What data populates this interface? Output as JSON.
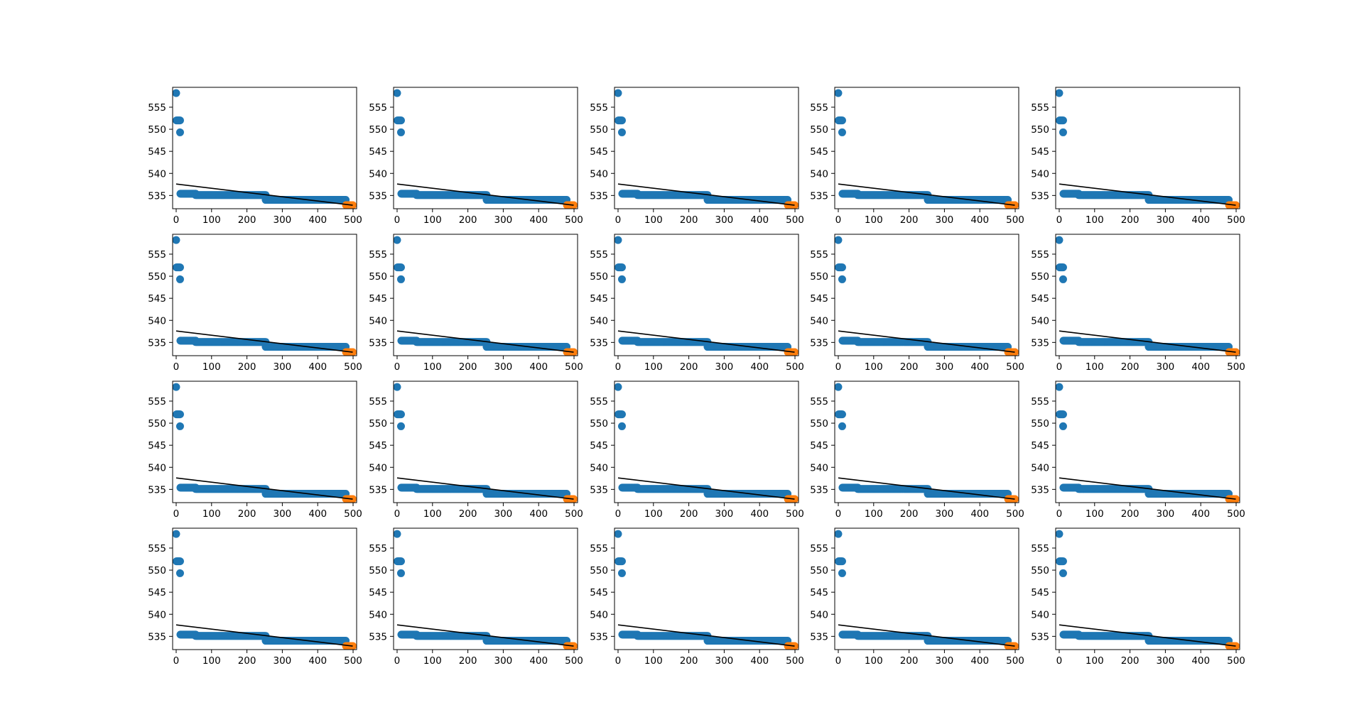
{
  "chart_data": {
    "type": "scatter",
    "grid": {
      "rows": 4,
      "cols": 5,
      "panel_count": 20
    },
    "panels_identical": true,
    "grid_lines": false,
    "legend": "none",
    "title": "",
    "xlabel": "",
    "ylabel": "",
    "xlim": [
      -10,
      510
    ],
    "ylim": [
      532,
      559.5
    ],
    "x_ticks": [
      0,
      100,
      200,
      300,
      400,
      500
    ],
    "x_tick_labels": [
      "0",
      "100",
      "200",
      "300",
      "400",
      "500"
    ],
    "y_ticks": [
      535,
      540,
      545,
      550,
      555
    ],
    "y_tick_labels": [
      "535",
      "540",
      "545",
      "550",
      "555"
    ],
    "colors": {
      "observed": "#1f77b4",
      "forecast": "#ff7f0e",
      "trend": "#000000"
    },
    "series": [
      {
        "kind": "scatter",
        "color_key": "observed",
        "points": [
          [
            0,
            558.2
          ],
          [
            1,
            552.0
          ],
          [
            3,
            552.0
          ],
          [
            5,
            552.0
          ],
          [
            7,
            552.0
          ],
          [
            9,
            552.0
          ],
          [
            11,
            552.0
          ],
          [
            11,
            549.3
          ],
          [
            12,
            535.4
          ],
          [
            14,
            535.4
          ],
          [
            16,
            535.4
          ],
          [
            18,
            535.4
          ],
          [
            20,
            535.4
          ],
          [
            22,
            535.4
          ],
          [
            24,
            535.4
          ],
          [
            26,
            535.4
          ],
          [
            28,
            535.4
          ],
          [
            30,
            535.4
          ],
          [
            32,
            535.4
          ],
          [
            34,
            535.4
          ],
          [
            36,
            535.4
          ],
          [
            38,
            535.4
          ],
          [
            40,
            535.4
          ],
          [
            42,
            535.4
          ],
          [
            44,
            535.4
          ],
          [
            46,
            535.4
          ],
          [
            48,
            535.4
          ],
          [
            50,
            535.4
          ],
          [
            52,
            535.4
          ],
          [
            54,
            535.4
          ],
          [
            55,
            535.4
          ]
        ],
        "segments": [
          {
            "x_start": 55,
            "x_end": 253,
            "step": 2,
            "y": 535.1
          },
          {
            "x_start": 253,
            "x_end": 480,
            "step": 2,
            "y": 534.0
          }
        ]
      },
      {
        "kind": "scatter",
        "color_key": "forecast",
        "segments": [
          {
            "x_start": 480,
            "x_end": 499,
            "step": 1,
            "y": 532.8
          }
        ]
      },
      {
        "kind": "line",
        "color_key": "trend",
        "points": [
          [
            0,
            537.6
          ],
          [
            499,
            532.8
          ]
        ]
      }
    ]
  }
}
